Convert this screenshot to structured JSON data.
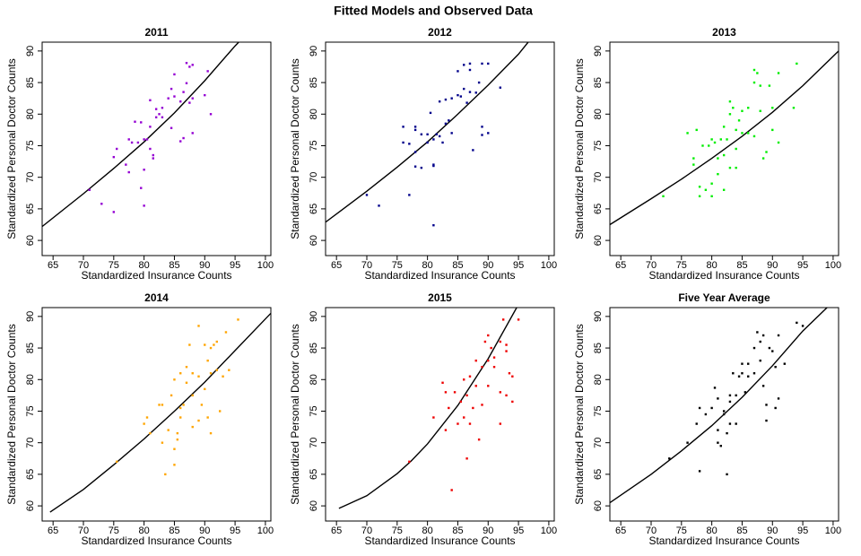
{
  "title": "Fitted Models and Observed Data",
  "chart_data": [
    {
      "type": "scatter",
      "title": "2011",
      "x_label": "Standardized Insurance Counts",
      "y_label": "Standardized Personal Doctor Counts",
      "xlim": [
        63.2,
        100.9
      ],
      "ylim": [
        57.6,
        91.4
      ],
      "xticks": [
        65,
        70,
        75,
        80,
        85,
        90,
        95,
        100
      ],
      "yticks": [
        60,
        65,
        70,
        75,
        80,
        85,
        90
      ],
      "points": {
        "color": "#9400d3",
        "x": [
          71,
          73,
          75,
          75,
          75.5,
          77,
          77.5,
          77.5,
          78,
          78.5,
          79,
          79.5,
          79.5,
          80,
          80,
          80,
          80.5,
          81,
          81,
          81,
          81.5,
          81.5,
          82,
          82,
          82.5,
          83,
          83,
          84,
          84.5,
          84.5,
          85,
          85,
          86,
          86,
          86.5,
          86.5,
          87,
          87,
          87.5,
          87.5,
          88,
          88,
          88,
          90,
          90.5,
          91
        ],
        "y": [
          68,
          65.8,
          64.5,
          73.2,
          74.5,
          72,
          76,
          70.8,
          75.5,
          78.8,
          75.5,
          78.7,
          68.3,
          65.5,
          71.2,
          76,
          76,
          78,
          82.2,
          74.5,
          73.5,
          73,
          79.5,
          80.8,
          80,
          81,
          79.5,
          82.5,
          84,
          77.8,
          86.3,
          82.8,
          82,
          75.7,
          76.2,
          83.5,
          88.1,
          84.9,
          87.5,
          81.8,
          87.8,
          82.5,
          77,
          83,
          86.8,
          80
        ]
      },
      "fitted_line": {
        "color": "#000000",
        "x": [
          63.2,
          70,
          75,
          80,
          85,
          90,
          95,
          95.6
        ],
        "y": [
          62.2,
          67.4,
          71.4,
          75.6,
          80.2,
          85.3,
          90.8,
          91.4
        ]
      }
    },
    {
      "type": "scatter",
      "title": "2012",
      "x_label": "Standardized Insurance Counts",
      "y_label": "Standardized Personal Doctor Counts",
      "xlim": [
        63.2,
        100.9
      ],
      "ylim": [
        57.6,
        91.4
      ],
      "xticks": [
        65,
        70,
        75,
        80,
        85,
        90,
        95,
        100
      ],
      "yticks": [
        60,
        65,
        70,
        75,
        80,
        85,
        90
      ],
      "points": {
        "color": "#00008b",
        "x": [
          70,
          72,
          76,
          76,
          77,
          77,
          78,
          78,
          78,
          78,
          79,
          79,
          80,
          80,
          80.5,
          81,
          81,
          81,
          81,
          81.5,
          82,
          82,
          82.5,
          83,
          83,
          83.5,
          84,
          84,
          85,
          85,
          85.5,
          86,
          86,
          86.5,
          87,
          87,
          87,
          87.5,
          88,
          88.5,
          89,
          89,
          89,
          90,
          90,
          92
        ],
        "y": [
          67.2,
          65.5,
          78,
          75.5,
          75.3,
          67.2,
          77.5,
          78,
          71.7,
          74,
          76.8,
          71.5,
          75.5,
          76.8,
          80.2,
          72,
          76,
          62.4,
          71.8,
          76.8,
          76.5,
          82,
          75.5,
          82.3,
          78.5,
          79,
          77,
          82.5,
          83,
          86.8,
          82.8,
          84,
          87.8,
          81.8,
          83.5,
          88,
          87,
          74.3,
          83.4,
          85,
          88,
          78,
          76.7,
          88,
          77,
          84.2
        ]
      },
      "fitted_line": {
        "color": "#000000",
        "x": [
          63.2,
          70,
          75,
          80,
          85,
          90,
          95,
          96.6
        ],
        "y": [
          62.9,
          67.8,
          71.6,
          75.6,
          80,
          84.6,
          89.5,
          91.4
        ]
      }
    },
    {
      "type": "scatter",
      "title": "2013",
      "x_label": "Standardized Insurance Counts",
      "y_label": "Standardized Personal Doctor Counts",
      "xlim": [
        63.2,
        100.9
      ],
      "ylim": [
        57.6,
        91.4
      ],
      "xticks": [
        65,
        70,
        75,
        80,
        85,
        90,
        95,
        100
      ],
      "yticks": [
        60,
        65,
        70,
        75,
        80,
        85,
        90
      ],
      "points": {
        "color": "#00ee00",
        "x": [
          72,
          76,
          77,
          77,
          77.5,
          78,
          78,
          78.5,
          79,
          79.5,
          80,
          80,
          80,
          80.5,
          81,
          81,
          81.5,
          82,
          82,
          82,
          82.5,
          83,
          83,
          83,
          83.5,
          84,
          84,
          84,
          84.5,
          85,
          85,
          86,
          86,
          87,
          87,
          87,
          87.5,
          88,
          88,
          88.5,
          89,
          89.5,
          90,
          90,
          91,
          91,
          93.5,
          94
        ],
        "y": [
          67,
          77,
          73,
          72,
          77.5,
          68.5,
          67,
          75,
          68,
          75,
          76,
          69,
          67,
          75.5,
          73,
          70.5,
          76,
          78,
          73.5,
          68,
          76,
          82,
          71.5,
          80,
          81,
          77.5,
          74.5,
          71.5,
          79,
          80.5,
          77,
          81,
          77,
          87,
          85,
          76.5,
          86.5,
          80.5,
          84.5,
          73,
          74,
          84.5,
          81,
          77.5,
          86.5,
          75.5,
          81,
          88
        ]
      },
      "fitted_line": {
        "color": "#000000",
        "x": [
          63.2,
          70,
          75,
          80,
          85,
          90,
          95,
          100.9
        ],
        "y": [
          62.5,
          66.6,
          69.7,
          73,
          76.5,
          80.3,
          84.5,
          90
        ]
      }
    },
    {
      "type": "scatter",
      "title": "2014",
      "x_label": "Standardized Insurance Counts",
      "y_label": "Standardized Personal Doctor Counts",
      "xlim": [
        63.2,
        100.9
      ],
      "ylim": [
        57.6,
        91.4
      ],
      "xticks": [
        65,
        70,
        75,
        80,
        85,
        90,
        95,
        100
      ],
      "yticks": [
        60,
        65,
        70,
        75,
        80,
        85,
        90
      ],
      "points": {
        "color": "#ffa500",
        "x": [
          75.5,
          80,
          80.5,
          81,
          82.5,
          83,
          83,
          83.5,
          84,
          84.5,
          85,
          85,
          85,
          85.5,
          85.5,
          86,
          86,
          86,
          86.5,
          87,
          87,
          87.5,
          88,
          88,
          88,
          89,
          89,
          89,
          89.5,
          90,
          90,
          90.5,
          90.5,
          91,
          91,
          91,
          91.5,
          92,
          92,
          92.5,
          93,
          93.5,
          94,
          95.5
        ],
        "y": [
          67,
          73,
          74,
          71.5,
          76,
          76,
          70,
          65,
          72,
          77.5,
          80,
          66.5,
          69,
          70.5,
          71.5,
          75.5,
          81,
          74,
          76,
          82,
          79.5,
          85.5,
          81,
          77.5,
          72.5,
          80.5,
          88.5,
          73.5,
          76,
          85.5,
          78.5,
          83,
          74,
          85,
          81,
          71.5,
          85.5,
          81.5,
          86,
          75,
          80.5,
          87.5,
          81.5,
          89.5
        ]
      },
      "fitted_line": {
        "color": "#000000",
        "x": [
          64.5,
          70,
          75,
          80,
          85,
          90,
          95,
          100.9
        ],
        "y": [
          59,
          62.6,
          66.5,
          70.6,
          75,
          79.6,
          84.6,
          90.5
        ]
      }
    },
    {
      "type": "scatter",
      "title": "2015",
      "x_label": "Standardized Insurance Counts",
      "y_label": "Standardized Personal Doctor Counts",
      "xlim": [
        63.2,
        100.9
      ],
      "ylim": [
        57.6,
        91.4
      ],
      "xticks": [
        65,
        70,
        75,
        80,
        85,
        90,
        95,
        100
      ],
      "yticks": [
        60,
        65,
        70,
        75,
        80,
        85,
        90
      ],
      "points": {
        "color": "#ee0000",
        "x": [
          77,
          81,
          82.5,
          83,
          83,
          83.5,
          84,
          84.5,
          85,
          85.5,
          86,
          86,
          86.5,
          86.5,
          87,
          87,
          87.5,
          88,
          88,
          88.5,
          89,
          89,
          89.5,
          90,
          90,
          90,
          90.5,
          91,
          91,
          92,
          92,
          92,
          92.5,
          93,
          93,
          93,
          93.5,
          94,
          94,
          95
        ],
        "y": [
          67,
          74,
          79.5,
          78,
          72,
          75.5,
          62.5,
          78,
          73,
          76.5,
          80,
          74,
          77.5,
          67.5,
          80.5,
          73,
          75.5,
          83,
          79,
          70.5,
          82,
          76,
          86,
          83,
          87,
          79,
          85,
          83.5,
          82,
          86,
          73,
          78,
          89.5,
          84.5,
          77.5,
          85.5,
          81,
          80.5,
          76.5,
          89.5
        ]
      },
      "fitted_line": {
        "color": "#000000",
        "x": [
          65.4,
          70,
          75,
          77.3,
          80,
          85,
          90,
          94.7
        ],
        "y": [
          59.6,
          61.6,
          65.1,
          67.1,
          69.8,
          75.9,
          83.3,
          91.4
        ]
      }
    },
    {
      "type": "scatter",
      "title": "Five Year Average",
      "x_label": "Standardized Insurance Counts",
      "y_label": "Standardized Personal Doctor Counts",
      "xlim": [
        63.2,
        100.9
      ],
      "ylim": [
        57.6,
        91.4
      ],
      "xticks": [
        65,
        70,
        75,
        80,
        85,
        90,
        95,
        100
      ],
      "yticks": [
        60,
        65,
        70,
        75,
        80,
        85,
        90
      ],
      "points": {
        "color": "#000000",
        "x": [
          73,
          76,
          77.5,
          78,
          78,
          79,
          80,
          80.5,
          81,
          81,
          81,
          81.5,
          82,
          82,
          82.5,
          82.5,
          83,
          83,
          83,
          83.5,
          84,
          84,
          84.5,
          85,
          85,
          85.5,
          86,
          86,
          87,
          87,
          87.5,
          88,
          88,
          88.5,
          88.5,
          89,
          89,
          89.5,
          90,
          90.5,
          90.5,
          91,
          91,
          92,
          94,
          95
        ],
        "y": [
          67.5,
          70,
          73,
          75.5,
          65.5,
          74.5,
          75.5,
          78.7,
          77,
          72,
          70,
          69.5,
          75,
          74.5,
          71.5,
          65,
          76.5,
          77.5,
          73,
          81,
          73,
          77.5,
          80.5,
          81,
          82.5,
          78,
          80.5,
          82.5,
          85,
          81,
          87.5,
          86,
          83,
          87,
          79,
          76,
          73.5,
          85,
          84.5,
          82,
          75.5,
          87,
          77,
          82.5,
          89,
          88.5
        ]
      },
      "fitted_line": {
        "color": "#000000",
        "x": [
          63.2,
          70,
          75,
          80,
          85,
          90,
          95,
          99
        ],
        "y": [
          60.5,
          65,
          68.7,
          72.7,
          77.2,
          82.2,
          87.7,
          91.4
        ]
      }
    }
  ]
}
